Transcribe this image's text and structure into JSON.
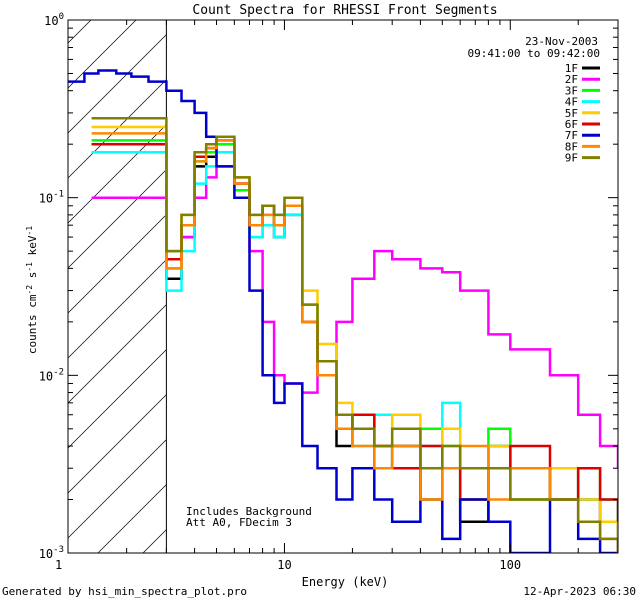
{
  "chart_data": {
    "type": "line",
    "title": "Count Spectra for RHESSI Front Segments",
    "xlabel": "Energy (keV)",
    "ylabel_parts": [
      "counts cm",
      "-2",
      " s",
      "-1",
      " keV",
      "-1"
    ],
    "xscale": "log",
    "yscale": "log",
    "xlim": [
      1.1,
      300
    ],
    "ylim": [
      0.001,
      1.0
    ],
    "x_ticks": [
      {
        "value": 1,
        "label": "1"
      },
      {
        "value": 10,
        "label": "10"
      },
      {
        "value": 100,
        "label": "100"
      }
    ],
    "y_ticks": [
      {
        "value": 1,
        "base": "10",
        "exp": "0"
      },
      {
        "value": 0.1,
        "base": "10",
        "exp": "-1"
      },
      {
        "value": 0.01,
        "base": "10",
        "exp": "-2"
      },
      {
        "value": 0.001,
        "base": "10",
        "exp": "-3"
      }
    ],
    "hatched_region": {
      "x_start": 1.1,
      "x_end": 3.0
    },
    "date": "23-Nov-2003",
    "time_range": "09:41:00 to 09:42:00",
    "annotations": [
      "Includes Background",
      "Att A0, FDecim 3"
    ],
    "footer_left": "Generated by hsi_min_spectra_plot.pro",
    "footer_right": "12-Apr-2023 06:30",
    "legend_position": "top-right",
    "series": [
      {
        "name": "1F",
        "color": "#000000",
        "x": [
          1.4,
          3,
          3.5,
          4,
          4.5,
          5,
          6,
          7,
          8,
          9,
          10,
          12,
          14,
          17,
          20,
          25,
          30,
          40,
          50,
          60,
          80,
          100,
          150,
          200,
          250,
          300
        ],
        "y": [
          0.2,
          0.035,
          0.06,
          0.15,
          0.17,
          0.2,
          0.12,
          0.07,
          0.09,
          0.06,
          0.08,
          0.02,
          0.01,
          0.004,
          0.006,
          0.003,
          0.004,
          0.002,
          0.003,
          0.0015,
          0.004,
          0.002,
          0.003,
          0.002,
          0.0015,
          0.001
        ]
      },
      {
        "name": "2F",
        "color": "#ff00ff",
        "x": [
          1.4,
          3,
          3.5,
          4,
          4.5,
          5,
          6,
          7,
          8,
          9,
          10,
          12,
          14,
          17,
          20,
          25,
          30,
          40,
          50,
          60,
          80,
          100,
          150,
          200,
          250,
          300
        ],
        "y": [
          0.1,
          0.04,
          0.06,
          0.1,
          0.13,
          0.15,
          0.12,
          0.05,
          0.02,
          0.01,
          0.009,
          0.008,
          0.01,
          0.02,
          0.035,
          0.05,
          0.045,
          0.04,
          0.038,
          0.03,
          0.017,
          0.014,
          0.01,
          0.006,
          0.004,
          0.003
        ]
      },
      {
        "name": "3F",
        "color": "#00ff00",
        "x": [
          1.4,
          3,
          3.5,
          4,
          4.5,
          5,
          6,
          7,
          8,
          9,
          10,
          12,
          14,
          17,
          20,
          25,
          30,
          40,
          50,
          60,
          80,
          100,
          150,
          200,
          250,
          300
        ],
        "y": [
          0.21,
          0.05,
          0.07,
          0.16,
          0.18,
          0.2,
          0.11,
          0.06,
          0.08,
          0.07,
          0.09,
          0.025,
          0.012,
          0.006,
          0.005,
          0.004,
          0.003,
          0.005,
          0.004,
          0.002,
          0.005,
          0.003,
          0.002,
          0.003,
          0.002,
          0.0015
        ]
      },
      {
        "name": "4F",
        "color": "#00ffff",
        "x": [
          1.4,
          3,
          3.5,
          4,
          4.5,
          5,
          6,
          7,
          8,
          9,
          10,
          12,
          14,
          17,
          20,
          25,
          30,
          40,
          50,
          60,
          80,
          100,
          150,
          200,
          250,
          300
        ],
        "y": [
          0.18,
          0.03,
          0.05,
          0.12,
          0.15,
          0.18,
          0.1,
          0.06,
          0.07,
          0.06,
          0.08,
          0.02,
          0.01,
          0.005,
          0.004,
          0.006,
          0.003,
          0.004,
          0.007,
          0.003,
          0.004,
          0.002,
          0.003,
          0.002,
          0.002,
          0.0015
        ]
      },
      {
        "name": "5F",
        "color": "#ffcc00",
        "x": [
          1.4,
          3,
          3.5,
          4,
          4.5,
          5,
          6,
          7,
          8,
          9,
          10,
          12,
          14,
          17,
          20,
          25,
          30,
          40,
          50,
          60,
          80,
          100,
          150,
          200,
          250,
          300
        ],
        "y": [
          0.25,
          0.04,
          0.08,
          0.18,
          0.2,
          0.22,
          0.13,
          0.08,
          0.09,
          0.08,
          0.1,
          0.03,
          0.015,
          0.007,
          0.005,
          0.004,
          0.006,
          0.003,
          0.005,
          0.003,
          0.004,
          0.002,
          0.003,
          0.002,
          0.0015,
          0.0012
        ]
      },
      {
        "name": "6F",
        "color": "#dd0000",
        "x": [
          1.4,
          3,
          3.5,
          4,
          4.5,
          5,
          6,
          7,
          8,
          9,
          10,
          12,
          14,
          17,
          20,
          25,
          30,
          40,
          50,
          60,
          80,
          100,
          150,
          200,
          250,
          300
        ],
        "y": [
          0.2,
          0.045,
          0.07,
          0.17,
          0.19,
          0.21,
          0.12,
          0.07,
          0.09,
          0.07,
          0.09,
          0.02,
          0.01,
          0.005,
          0.006,
          0.004,
          0.003,
          0.004,
          0.003,
          0.002,
          0.003,
          0.004,
          0.002,
          0.003,
          0.002,
          0.0015
        ]
      },
      {
        "name": "7F",
        "color": "#0000cc",
        "x": [
          1.1,
          1.3,
          1.5,
          1.8,
          2.1,
          2.5,
          3,
          3.5,
          4,
          4.5,
          5,
          6,
          7,
          8,
          9,
          10,
          12,
          14,
          17,
          20,
          25,
          30,
          40,
          50,
          60,
          80,
          100,
          150,
          200,
          250,
          300
        ],
        "y": [
          0.45,
          0.5,
          0.52,
          0.5,
          0.48,
          0.45,
          0.4,
          0.35,
          0.3,
          0.22,
          0.15,
          0.1,
          0.03,
          0.01,
          0.007,
          0.009,
          0.004,
          0.003,
          0.002,
          0.003,
          0.002,
          0.0015,
          0.003,
          0.0012,
          0.002,
          0.0015,
          0.001,
          0.002,
          0.0012,
          0.001,
          0.001
        ]
      },
      {
        "name": "8F",
        "color": "#ff8800",
        "x": [
          1.4,
          3,
          3.5,
          4,
          4.5,
          5,
          6,
          7,
          8,
          9,
          10,
          12,
          14,
          17,
          20,
          25,
          30,
          40,
          50,
          60,
          80,
          100,
          150,
          200,
          250,
          300
        ],
        "y": [
          0.23,
          0.04,
          0.07,
          0.16,
          0.19,
          0.21,
          0.12,
          0.07,
          0.08,
          0.07,
          0.09,
          0.02,
          0.01,
          0.005,
          0.004,
          0.003,
          0.004,
          0.002,
          0.003,
          0.004,
          0.002,
          0.003,
          0.002,
          0.0015,
          0.0012,
          0.001
        ]
      },
      {
        "name": "9F",
        "color": "#808000",
        "x": [
          1.4,
          3,
          3.5,
          4,
          4.5,
          5,
          6,
          7,
          8,
          9,
          10,
          12,
          14,
          17,
          20,
          25,
          30,
          40,
          50,
          60,
          80,
          100,
          150,
          200,
          250,
          300
        ],
        "y": [
          0.28,
          0.05,
          0.08,
          0.18,
          0.2,
          0.22,
          0.13,
          0.08,
          0.09,
          0.08,
          0.1,
          0.025,
          0.012,
          0.006,
          0.005,
          0.004,
          0.005,
          0.003,
          0.004,
          0.003,
          0.003,
          0.002,
          0.002,
          0.0015,
          0.0012,
          0.001
        ]
      }
    ]
  }
}
